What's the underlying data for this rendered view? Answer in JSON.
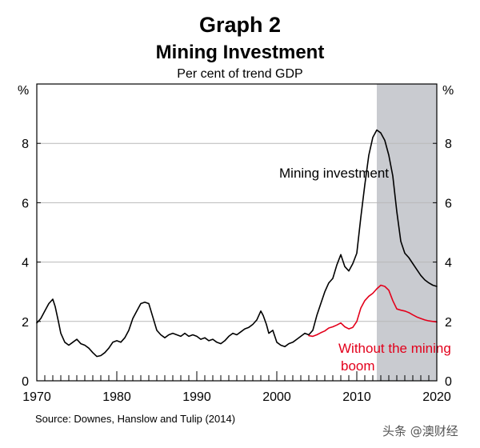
{
  "header": {
    "graph_label": "Graph 2",
    "title": "Mining Investment",
    "subtitle": "Per cent of trend GDP"
  },
  "footer": {
    "source": "Source: Downes, Hanslow and Tulip (2014)",
    "watermark": "头条 @澳财经"
  },
  "chart_data": {
    "type": "line",
    "title": "Mining Investment",
    "subtitle": "Per cent of trend GDP",
    "ylabel_left": "%",
    "ylabel_right": "%",
    "xlim": [
      1970,
      2020
    ],
    "ylim": [
      0,
      10
    ],
    "x_ticks": [
      1970,
      1980,
      1990,
      2000,
      2010,
      2020
    ],
    "y_ticks": [
      0,
      2,
      4,
      6,
      8
    ],
    "y_tick_labels": [
      "0",
      "2",
      "4",
      "6",
      "8"
    ],
    "grid": "horizontal",
    "shaded_region": {
      "x_start": 2012.5,
      "x_end": 2020,
      "color": "#c9cbd0"
    },
    "series": [
      {
        "name": "Mining investment",
        "color": "#000000",
        "points": [
          [
            1970,
            1.95
          ],
          [
            1970.5,
            2.1
          ],
          [
            1971,
            2.35
          ],
          [
            1971.5,
            2.6
          ],
          [
            1972,
            2.75
          ],
          [
            1972.3,
            2.5
          ],
          [
            1972.7,
            2.0
          ],
          [
            1973,
            1.6
          ],
          [
            1973.5,
            1.3
          ],
          [
            1974,
            1.2
          ],
          [
            1974.5,
            1.3
          ],
          [
            1975,
            1.4
          ],
          [
            1975.5,
            1.25
          ],
          [
            1976,
            1.2
          ],
          [
            1976.5,
            1.1
          ],
          [
            1977,
            0.95
          ],
          [
            1977.5,
            0.82
          ],
          [
            1978,
            0.85
          ],
          [
            1978.5,
            0.95
          ],
          [
            1979,
            1.1
          ],
          [
            1979.5,
            1.3
          ],
          [
            1980,
            1.35
          ],
          [
            1980.5,
            1.3
          ],
          [
            1981,
            1.45
          ],
          [
            1981.5,
            1.7
          ],
          [
            1982,
            2.1
          ],
          [
            1982.5,
            2.35
          ],
          [
            1983,
            2.6
          ],
          [
            1983.5,
            2.65
          ],
          [
            1984,
            2.6
          ],
          [
            1984.5,
            2.15
          ],
          [
            1985,
            1.7
          ],
          [
            1985.5,
            1.55
          ],
          [
            1986,
            1.45
          ],
          [
            1986.5,
            1.55
          ],
          [
            1987,
            1.6
          ],
          [
            1987.5,
            1.55
          ],
          [
            1988,
            1.5
          ],
          [
            1988.5,
            1.6
          ],
          [
            1989,
            1.5
          ],
          [
            1989.5,
            1.55
          ],
          [
            1990,
            1.5
          ],
          [
            1990.5,
            1.4
          ],
          [
            1991,
            1.45
          ],
          [
            1991.5,
            1.35
          ],
          [
            1992,
            1.4
          ],
          [
            1992.5,
            1.3
          ],
          [
            1993,
            1.25
          ],
          [
            1993.5,
            1.35
          ],
          [
            1994,
            1.5
          ],
          [
            1994.5,
            1.6
          ],
          [
            1995,
            1.55
          ],
          [
            1995.5,
            1.65
          ],
          [
            1996,
            1.75
          ],
          [
            1996.5,
            1.8
          ],
          [
            1997,
            1.9
          ],
          [
            1997.5,
            2.05
          ],
          [
            1998,
            2.35
          ],
          [
            1998.3,
            2.2
          ],
          [
            1998.7,
            1.9
          ],
          [
            1999,
            1.6
          ],
          [
            1999.5,
            1.7
          ],
          [
            2000,
            1.3
          ],
          [
            2000.5,
            1.2
          ],
          [
            2001,
            1.15
          ],
          [
            2001.5,
            1.25
          ],
          [
            2002,
            1.3
          ],
          [
            2002.5,
            1.4
          ],
          [
            2003,
            1.5
          ],
          [
            2003.5,
            1.6
          ],
          [
            2004,
            1.55
          ],
          [
            2004.5,
            1.7
          ],
          [
            2005,
            2.2
          ],
          [
            2005.5,
            2.6
          ],
          [
            2006,
            3.0
          ],
          [
            2006.5,
            3.3
          ],
          [
            2007,
            3.45
          ],
          [
            2007.5,
            3.9
          ],
          [
            2008,
            4.25
          ],
          [
            2008.5,
            3.85
          ],
          [
            2009,
            3.7
          ],
          [
            2009.5,
            3.95
          ],
          [
            2010,
            4.3
          ],
          [
            2010.5,
            5.5
          ],
          [
            2011,
            6.6
          ],
          [
            2011.5,
            7.6
          ],
          [
            2012,
            8.2
          ],
          [
            2012.5,
            8.45
          ],
          [
            2013,
            8.35
          ],
          [
            2013.5,
            8.1
          ],
          [
            2014,
            7.6
          ],
          [
            2014.5,
            6.9
          ],
          [
            2015,
            5.7
          ],
          [
            2015.5,
            4.7
          ],
          [
            2016,
            4.3
          ],
          [
            2016.5,
            4.15
          ],
          [
            2017,
            3.95
          ],
          [
            2017.5,
            3.75
          ],
          [
            2018,
            3.55
          ],
          [
            2018.5,
            3.4
          ],
          [
            2019,
            3.3
          ],
          [
            2019.5,
            3.22
          ],
          [
            2020,
            3.18
          ]
        ]
      },
      {
        "name": "Without the mining boom",
        "color": "#e3001b",
        "points": [
          [
            2004,
            1.52
          ],
          [
            2004.5,
            1.5
          ],
          [
            2005,
            1.55
          ],
          [
            2005.5,
            1.62
          ],
          [
            2006,
            1.68
          ],
          [
            2006.5,
            1.78
          ],
          [
            2007,
            1.82
          ],
          [
            2007.5,
            1.88
          ],
          [
            2008,
            1.95
          ],
          [
            2008.5,
            1.82
          ],
          [
            2009,
            1.75
          ],
          [
            2009.5,
            1.8
          ],
          [
            2010,
            2.0
          ],
          [
            2010.5,
            2.45
          ],
          [
            2011,
            2.7
          ],
          [
            2011.5,
            2.85
          ],
          [
            2012,
            2.95
          ],
          [
            2012.5,
            3.1
          ],
          [
            2013,
            3.22
          ],
          [
            2013.5,
            3.18
          ],
          [
            2014,
            3.05
          ],
          [
            2014.5,
            2.7
          ],
          [
            2015,
            2.42
          ],
          [
            2015.5,
            2.38
          ],
          [
            2016,
            2.35
          ],
          [
            2016.5,
            2.3
          ],
          [
            2017,
            2.22
          ],
          [
            2017.5,
            2.15
          ],
          [
            2018,
            2.1
          ],
          [
            2018.5,
            2.05
          ],
          [
            2019,
            2.02
          ],
          [
            2019.5,
            2.0
          ],
          [
            2020,
            1.98
          ]
        ]
      }
    ],
    "annotations": [
      {
        "text": "Mining investment",
        "x": 2000.3,
        "y": 6.85,
        "color": "#000000"
      },
      {
        "text": "Without the mining",
        "x": 2007.7,
        "y": 0.95,
        "color": "#e3001b"
      },
      {
        "text": "boom",
        "x": 2008.0,
        "y": 0.35,
        "color": "#e3001b"
      }
    ]
  }
}
